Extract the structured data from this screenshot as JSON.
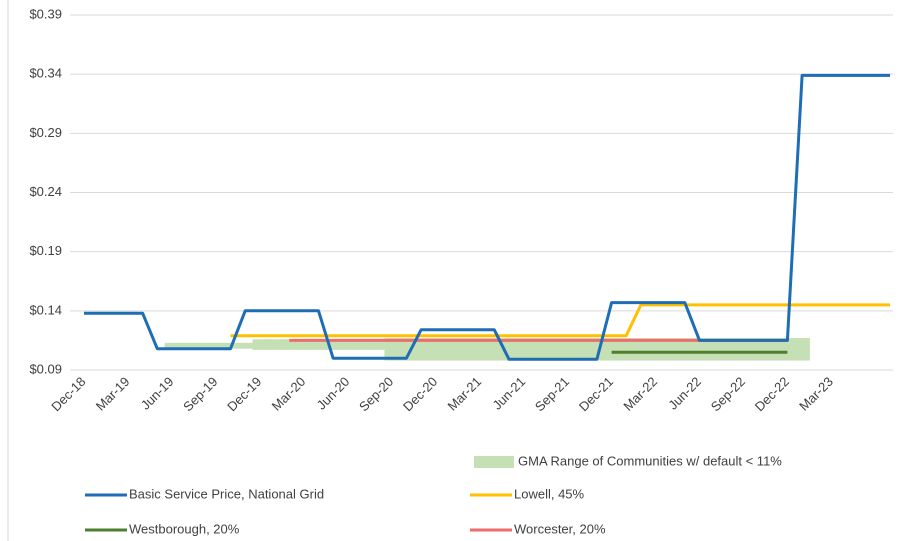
{
  "chart_data": {
    "type": "line",
    "categories": [
      "Dec-18",
      null,
      null,
      "Mar-19",
      null,
      null,
      "Jun-19",
      null,
      null,
      "Sep-19",
      null,
      null,
      "Dec-19",
      null,
      null,
      "Mar-20",
      null,
      null,
      "Jun-20",
      null,
      null,
      "Sep-20",
      null,
      null,
      "Dec-20",
      null,
      null,
      "Mar-21",
      null,
      null,
      "Jun-21",
      null,
      null,
      "Sep-21",
      null,
      null,
      "Dec-21",
      null,
      null,
      "Mar-22",
      null,
      null,
      "Jun-22",
      null,
      null,
      "Sep-22",
      null,
      null,
      "Dec-22",
      null,
      null,
      "Mar-23",
      null,
      null,
      null,
      null
    ],
    "ylim": [
      0.09,
      0.39
    ],
    "yticks": [
      {
        "value": 0.09,
        "label": "$0.09"
      },
      {
        "value": 0.14,
        "label": "$0.14"
      },
      {
        "value": 0.19,
        "label": "$0.19"
      },
      {
        "value": 0.24,
        "label": "$0.24"
      },
      {
        "value": 0.29,
        "label": "$0.29"
      },
      {
        "value": 0.34,
        "label": "$0.34"
      },
      {
        "value": 0.39,
        "label": "$0.39"
      }
    ],
    "grid": true,
    "legend": "bottom",
    "range": {
      "name": "GMA Range of Communities w/ default < 11%",
      "color": "#c5e0b4",
      "low": [
        null,
        null,
        null,
        null,
        null,
        null,
        0.108,
        0.108,
        0.108,
        0.108,
        0.108,
        0.108,
        0.107,
        0.107,
        0.107,
        0.107,
        0.107,
        0.107,
        0.107,
        0.107,
        0.107,
        0.098,
        0.098,
        0.098,
        0.098,
        0.098,
        0.098,
        0.098,
        0.098,
        0.098,
        0.098,
        0.098,
        0.098,
        0.098,
        0.098,
        0.098,
        0.098,
        0.098,
        0.098,
        0.098,
        0.098,
        0.098,
        0.098,
        0.098,
        0.098,
        0.098,
        0.098,
        0.098,
        0.098,
        0.098,
        null,
        null,
        null,
        null,
        null,
        null
      ],
      "high": [
        null,
        null,
        null,
        null,
        null,
        null,
        0.113,
        0.113,
        0.113,
        0.113,
        0.113,
        0.113,
        0.116,
        0.116,
        0.116,
        0.116,
        0.116,
        0.116,
        0.116,
        0.116,
        0.116,
        0.117,
        0.117,
        0.117,
        0.117,
        0.117,
        0.117,
        0.117,
        0.117,
        0.117,
        0.117,
        0.117,
        0.117,
        0.117,
        0.117,
        0.117,
        0.117,
        0.117,
        0.117,
        0.117,
        0.117,
        0.117,
        0.117,
        0.117,
        0.117,
        0.117,
        0.117,
        0.117,
        0.117,
        0.117,
        null,
        null,
        null,
        null,
        null,
        null
      ]
    },
    "series": [
      {
        "name": "Basic Service Price, National Grid",
        "color": "#1f6db4",
        "values": [
          0.138,
          0.138,
          0.138,
          0.138,
          0.138,
          0.108,
          0.108,
          0.108,
          0.108,
          0.108,
          0.108,
          0.14,
          0.14,
          0.14,
          0.14,
          0.14,
          0.14,
          0.1,
          0.1,
          0.1,
          0.1,
          0.1,
          0.1,
          0.124,
          0.124,
          0.124,
          0.124,
          0.124,
          0.124,
          0.099,
          0.099,
          0.099,
          0.099,
          0.099,
          0.099,
          0.099,
          0.147,
          0.147,
          0.147,
          0.147,
          0.147,
          0.147,
          0.115,
          0.115,
          0.115,
          0.115,
          0.115,
          0.115,
          0.115,
          0.339,
          0.339,
          0.339,
          0.339,
          0.339,
          0.339,
          0.339
        ]
      },
      {
        "name": "Lowell, 45%",
        "color": "#ffc000",
        "values": [
          null,
          null,
          null,
          null,
          null,
          null,
          null,
          null,
          null,
          null,
          0.119,
          0.119,
          0.119,
          0.119,
          0.119,
          0.119,
          0.119,
          0.119,
          0.119,
          0.119,
          0.119,
          0.119,
          0.119,
          0.119,
          0.119,
          0.119,
          0.119,
          0.119,
          0.119,
          0.119,
          0.119,
          0.119,
          0.119,
          0.119,
          0.119,
          0.119,
          0.119,
          0.119,
          0.145,
          0.145,
          0.145,
          0.145,
          0.145,
          0.145,
          0.145,
          0.145,
          0.145,
          0.145,
          0.145,
          0.145,
          0.145,
          0.145,
          0.145,
          0.145,
          0.145,
          0.145
        ]
      },
      {
        "name": "Westborough, 20%",
        "color": "#4e7f2c",
        "values": [
          null,
          null,
          null,
          null,
          null,
          null,
          null,
          null,
          null,
          null,
          null,
          null,
          null,
          null,
          null,
          null,
          null,
          null,
          null,
          null,
          null,
          null,
          null,
          null,
          null,
          null,
          null,
          null,
          null,
          null,
          null,
          null,
          null,
          null,
          null,
          null,
          0.105,
          0.105,
          0.105,
          0.105,
          0.105,
          0.105,
          0.105,
          0.105,
          0.105,
          0.105,
          0.105,
          0.105,
          0.105,
          null,
          null,
          null,
          null,
          null,
          null,
          null
        ]
      },
      {
        "name": "Worcester, 20%",
        "color": "#ed6d6d",
        "values": [
          null,
          null,
          null,
          null,
          null,
          null,
          null,
          null,
          null,
          null,
          null,
          null,
          null,
          null,
          0.115,
          0.115,
          0.115,
          0.115,
          0.115,
          0.115,
          0.115,
          0.115,
          0.115,
          0.115,
          0.115,
          0.115,
          0.115,
          0.115,
          0.115,
          0.115,
          0.115,
          0.115,
          0.115,
          0.115,
          0.115,
          0.115,
          0.115,
          0.115,
          0.115,
          0.115,
          0.115,
          0.115,
          0.115,
          0.115,
          0.115,
          0.115,
          0.115,
          0.115,
          0.115,
          null,
          null,
          null,
          null,
          null,
          null,
          null
        ]
      }
    ]
  }
}
